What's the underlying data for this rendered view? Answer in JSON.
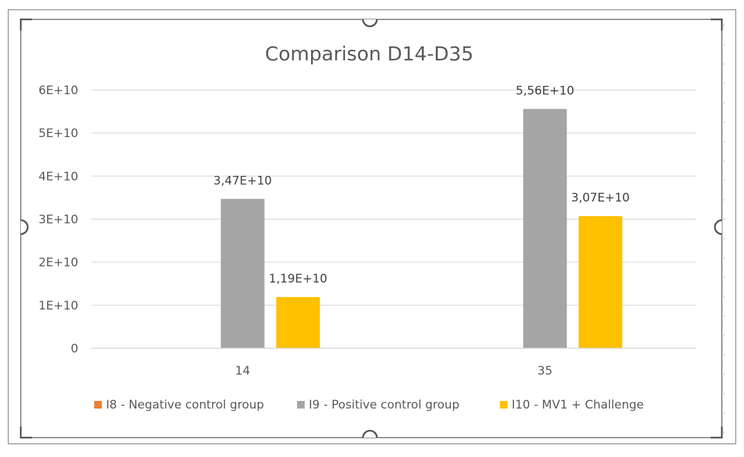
{
  "chart_data": {
    "type": "bar",
    "title": "Comparison D14-D35",
    "xlabel": "",
    "ylabel": "",
    "categories": [
      "14",
      "35"
    ],
    "series": [
      {
        "name": "I8 - Negative control group",
        "color": "#ED7D31",
        "values": [
          0,
          0
        ],
        "labels": [
          "",
          ""
        ]
      },
      {
        "name": "I9 - Positive control group",
        "color": "#A5A5A5",
        "values": [
          34700000000,
          55600000000
        ],
        "labels": [
          "3,47E+10",
          "5,56E+10"
        ]
      },
      {
        "name": "I10 - MV1 + Challenge",
        "color": "#FFC000",
        "values": [
          11900000000,
          30700000000
        ],
        "labels": [
          "1,19E+10",
          "3,07E+10"
        ]
      }
    ],
    "ylim": [
      0,
      60000000000
    ],
    "yticks": [
      {
        "value": 0,
        "label": "0"
      },
      {
        "value": 10000000000,
        "label": "1E+10"
      },
      {
        "value": 20000000000,
        "label": "2E+10"
      },
      {
        "value": 30000000000,
        "label": "3E+10"
      },
      {
        "value": 40000000000,
        "label": "4E+10"
      },
      {
        "value": 50000000000,
        "label": "5E+10"
      },
      {
        "value": 60000000000,
        "label": "6E+10"
      }
    ],
    "grid": true,
    "legend_position": "bottom"
  }
}
